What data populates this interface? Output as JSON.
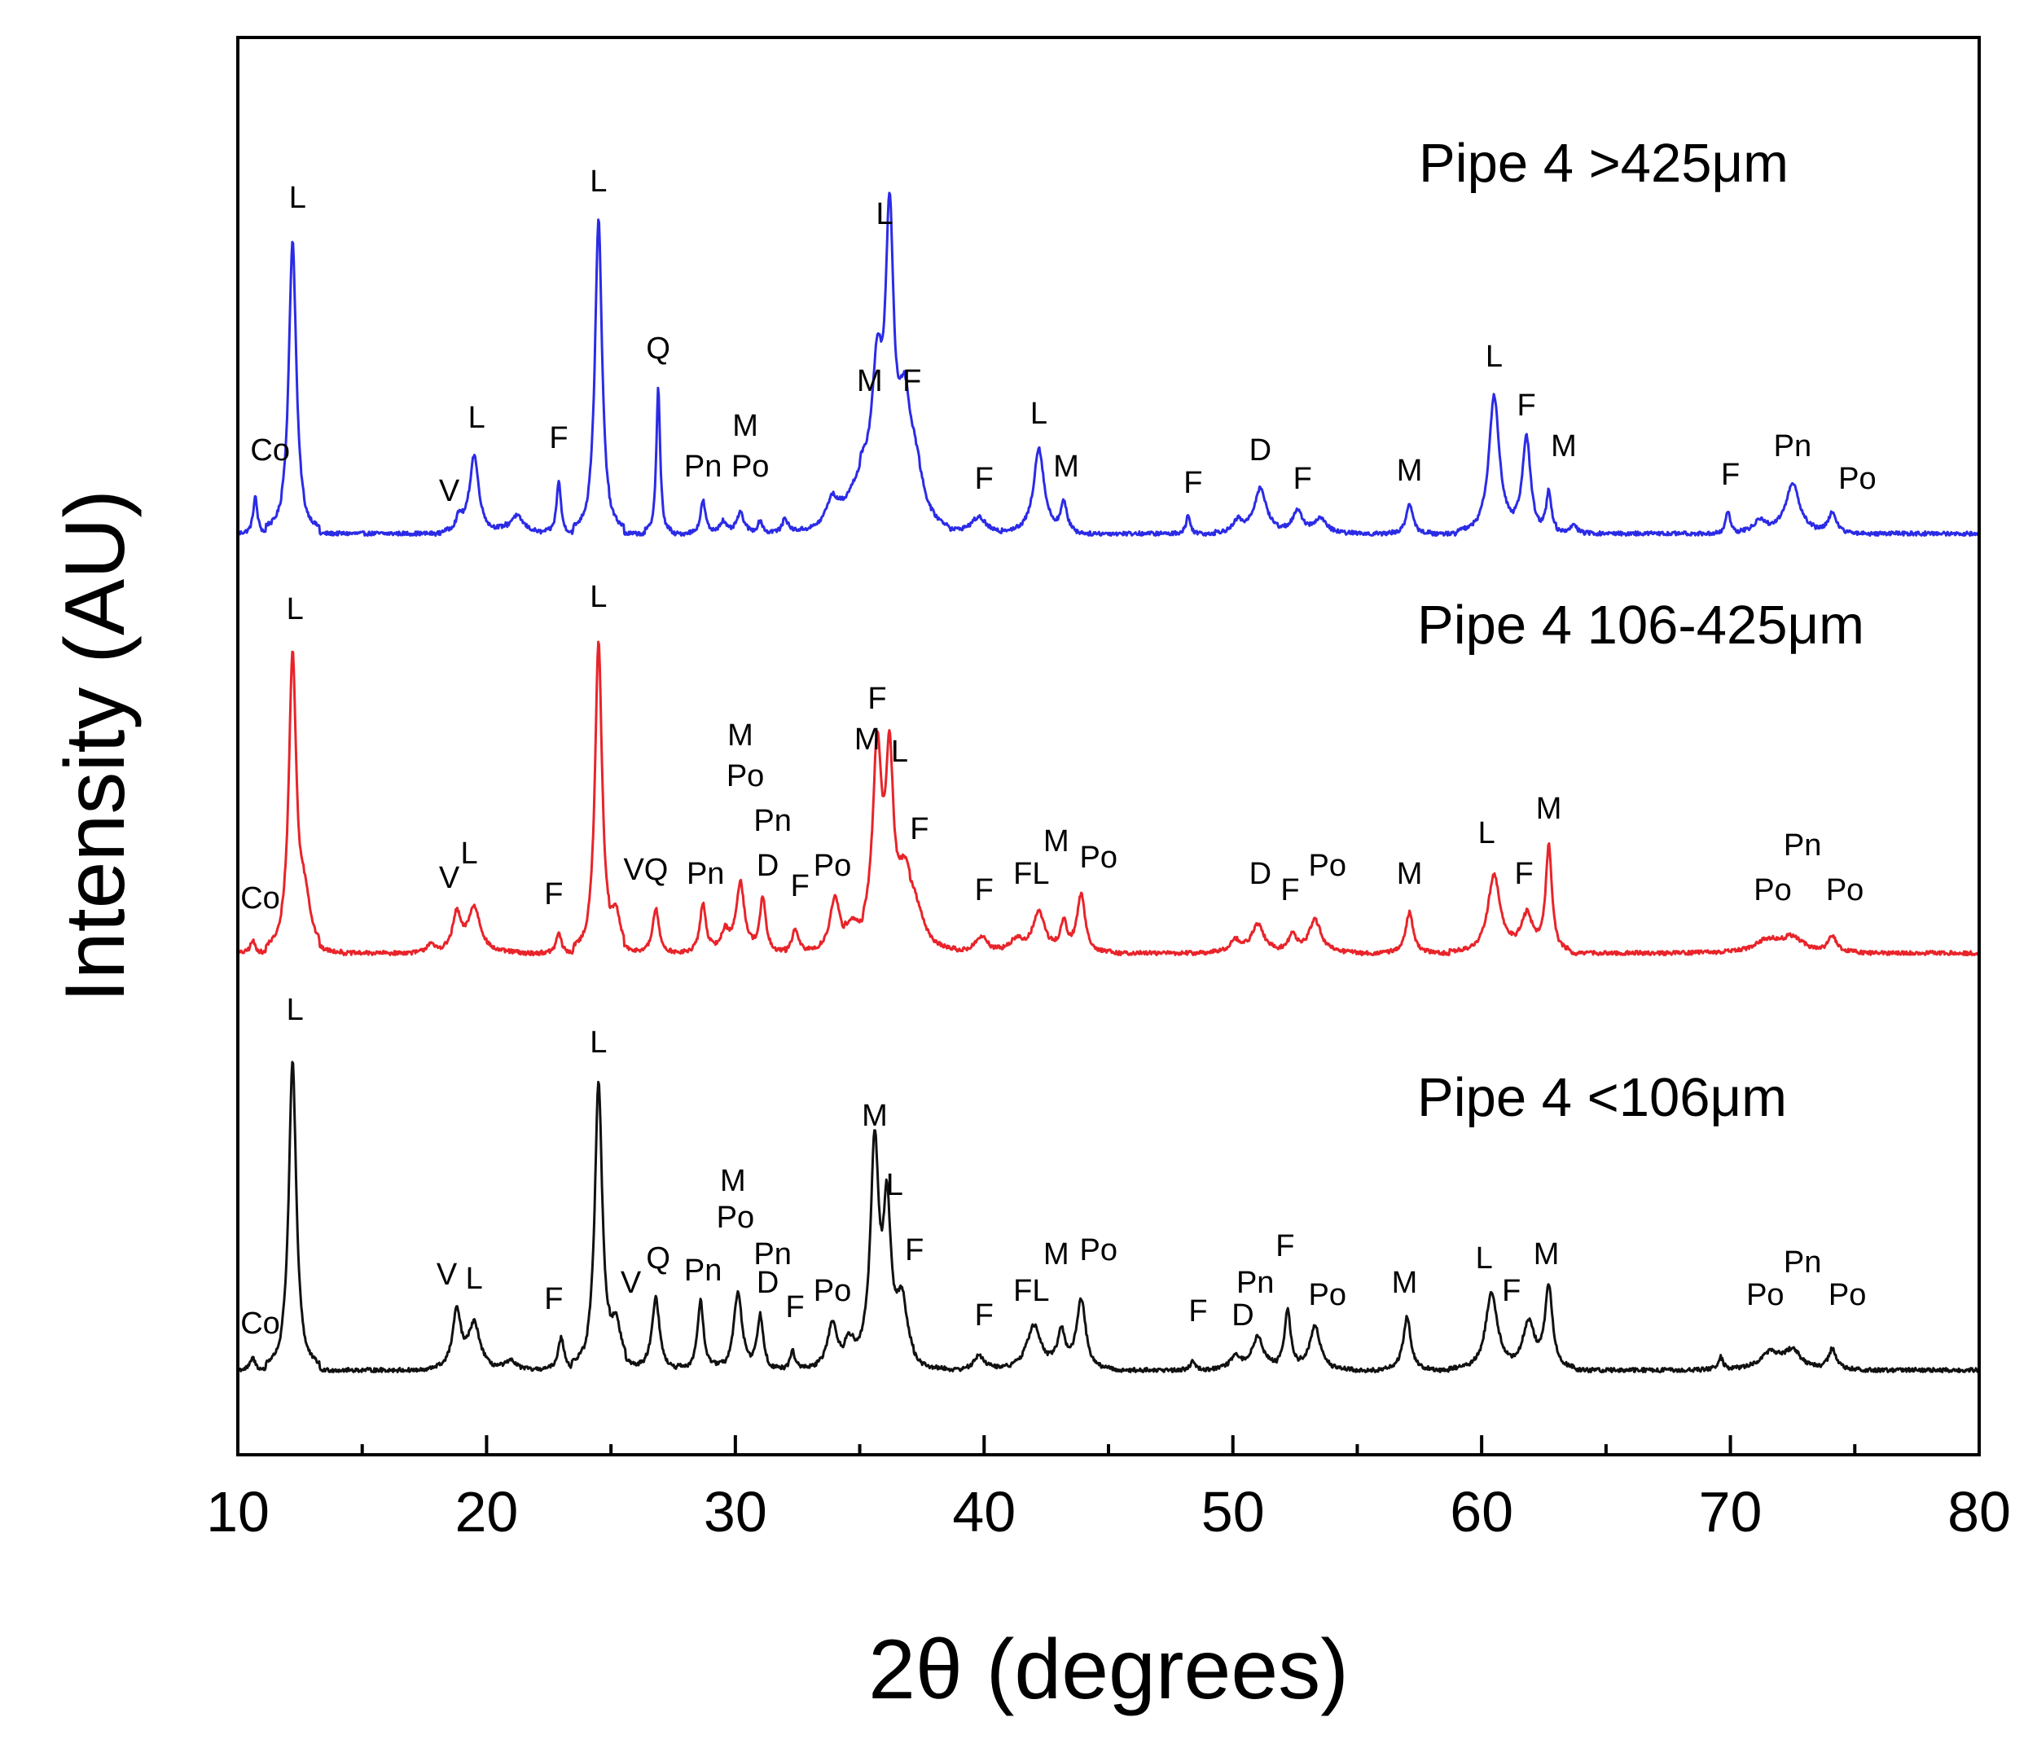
{
  "chart_data": {
    "type": "line",
    "title": "",
    "xlabel": "2θ (degrees)",
    "ylabel": "Intensity (AU)",
    "xlim": [
      10,
      80
    ],
    "xticks": [
      10,
      20,
      30,
      40,
      50,
      60,
      70,
      80
    ],
    "y_units": "arbitrary (stacked, offset)",
    "series": [
      {
        "name": "Pipe 4 >425μm",
        "label": "Pipe 4 >425μm",
        "color": "#2b2be6",
        "baseline": 0,
        "peaks": [
          [
            10.7,
            45,
            0.1
          ],
          [
            12.2,
            360,
            0.18
          ],
          [
            18.9,
            18,
            0.15
          ],
          [
            19.5,
            95,
            0.22
          ],
          [
            21.2,
            22,
            0.35
          ],
          [
            22.9,
            65,
            0.1
          ],
          [
            24.5,
            385,
            0.17
          ],
          [
            26.9,
            180,
            0.09
          ],
          [
            28.7,
            40,
            0.12
          ],
          [
            29.5,
            15,
            0.15
          ],
          [
            30.2,
            25,
            0.18
          ],
          [
            31.0,
            15,
            0.12
          ],
          [
            32.0,
            18,
            0.12
          ],
          [
            33.9,
            35,
            0.3
          ],
          [
            35.0,
            60,
            0.6
          ],
          [
            35.7,
            160,
            0.26
          ],
          [
            36.2,
            340,
            0.2
          ],
          [
            36.8,
            130,
            0.3
          ],
          [
            37.3,
            60,
            0.4
          ],
          [
            39.8,
            20,
            0.35
          ],
          [
            42.2,
            105,
            0.25
          ],
          [
            43.2,
            35,
            0.15
          ],
          [
            48.2,
            22,
            0.1
          ],
          [
            50.2,
            15,
            0.2
          ],
          [
            51.1,
            55,
            0.3
          ],
          [
            52.6,
            25,
            0.25
          ],
          [
            53.5,
            18,
            0.3
          ],
          [
            57.1,
            38,
            0.15
          ],
          [
            60.5,
            170,
            0.25
          ],
          [
            61.8,
            115,
            0.2
          ],
          [
            62.7,
            50,
            0.12
          ],
          [
            63.7,
            12,
            0.15
          ],
          [
            69.9,
            28,
            0.1
          ],
          [
            71.2,
            15,
            0.3
          ],
          [
            72.5,
            60,
            0.35
          ],
          [
            74.1,
            25,
            0.18
          ]
        ],
        "peak_labels": [
          {
            "text": "Co",
            "x": 11.3,
            "y": 90
          },
          {
            "text": "L",
            "x": 12.4,
            "y": 400
          },
          {
            "text": "V",
            "x": 18.5,
            "y": 40
          },
          {
            "text": "L",
            "x": 19.6,
            "y": 130
          },
          {
            "text": "F",
            "x": 22.9,
            "y": 105
          },
          {
            "text": "L",
            "x": 24.5,
            "y": 420
          },
          {
            "text": "Q",
            "x": 26.9,
            "y": 215
          },
          {
            "text": "Pn",
            "x": 28.7,
            "y": 70
          },
          {
            "text": "M",
            "x": 30.4,
            "y": 120
          },
          {
            "text": "Po",
            "x": 30.6,
            "y": 70
          },
          {
            "text": "M",
            "x": 35.4,
            "y": 175
          },
          {
            "text": "L",
            "x": 36.0,
            "y": 380
          },
          {
            "text": "F",
            "x": 37.1,
            "y": 175
          },
          {
            "text": "F",
            "x": 40.0,
            "y": 55
          },
          {
            "text": "L",
            "x": 42.2,
            "y": 135
          },
          {
            "text": "M",
            "x": 43.3,
            "y": 70
          },
          {
            "text": "F",
            "x": 48.4,
            "y": 50
          },
          {
            "text": "D",
            "x": 51.1,
            "y": 90
          },
          {
            "text": "F",
            "x": 52.8,
            "y": 55
          },
          {
            "text": "M",
            "x": 57.1,
            "y": 65
          },
          {
            "text": "L",
            "x": 60.5,
            "y": 205
          },
          {
            "text": "F",
            "x": 61.8,
            "y": 145
          },
          {
            "text": "M",
            "x": 63.3,
            "y": 95
          },
          {
            "text": "F",
            "x": 70.0,
            "y": 60
          },
          {
            "text": "Pn",
            "x": 72.5,
            "y": 95
          },
          {
            "text": "Po",
            "x": 75.1,
            "y": 55
          }
        ]
      },
      {
        "name": "Pipe 4 106-425μm",
        "label": "Pipe 4 106-425μm",
        "color": "#e8242a",
        "baseline": 0,
        "peaks": [
          [
            10.6,
            15,
            0.12
          ],
          [
            12.2,
            360,
            0.18
          ],
          [
            12.7,
            60,
            0.25
          ],
          [
            17.7,
            10,
            0.2
          ],
          [
            18.8,
            45,
            0.2
          ],
          [
            19.5,
            55,
            0.3
          ],
          [
            22.9,
            25,
            0.12
          ],
          [
            24.5,
            380,
            0.17
          ],
          [
            25.2,
            40,
            0.2
          ],
          [
            26.8,
            55,
            0.15
          ],
          [
            28.7,
            60,
            0.15
          ],
          [
            29.6,
            25,
            0.2
          ],
          [
            30.2,
            85,
            0.2
          ],
          [
            31.1,
            65,
            0.15
          ],
          [
            32.4,
            30,
            0.15
          ],
          [
            34.0,
            65,
            0.25
          ],
          [
            34.7,
            25,
            0.3
          ],
          [
            35.7,
            240,
            0.22
          ],
          [
            36.2,
            210,
            0.18
          ],
          [
            36.8,
            80,
            0.35
          ],
          [
            37.3,
            40,
            0.4
          ],
          [
            39.9,
            20,
            0.3
          ],
          [
            41.3,
            15,
            0.3
          ],
          [
            42.2,
            50,
            0.3
          ],
          [
            43.2,
            35,
            0.15
          ],
          [
            43.9,
            70,
            0.2
          ],
          [
            50.1,
            15,
            0.25
          ],
          [
            51.0,
            35,
            0.3
          ],
          [
            52.4,
            20,
            0.2
          ],
          [
            53.3,
            40,
            0.3
          ],
          [
            57.1,
            50,
            0.18
          ],
          [
            60.5,
            95,
            0.3
          ],
          [
            61.8,
            45,
            0.3
          ],
          [
            62.7,
            130,
            0.15
          ],
          [
            71.5,
            15,
            0.6
          ],
          [
            72.5,
            18,
            0.5
          ],
          [
            74.1,
            20,
            0.2
          ]
        ],
        "peak_labels": [
          {
            "text": "Co",
            "x": 10.9,
            "y": 55
          },
          {
            "text": "L",
            "x": 12.3,
            "y": 410
          },
          {
            "text": "V",
            "x": 18.5,
            "y": 80
          },
          {
            "text": "L",
            "x": 19.3,
            "y": 110
          },
          {
            "text": "F",
            "x": 22.7,
            "y": 60
          },
          {
            "text": "L",
            "x": 24.5,
            "y": 425
          },
          {
            "text": "VQ",
            "x": 26.4,
            "y": 90
          },
          {
            "text": "Pn",
            "x": 28.8,
            "y": 85
          },
          {
            "text": "M",
            "x": 30.2,
            "y": 255
          },
          {
            "text": "Po",
            "x": 30.4,
            "y": 205
          },
          {
            "text": "Pn",
            "x": 31.5,
            "y": 150
          },
          {
            "text": "D",
            "x": 31.3,
            "y": 95
          },
          {
            "text": "F",
            "x": 32.6,
            "y": 70
          },
          {
            "text": "Po",
            "x": 33.9,
            "y": 95
          },
          {
            "text": "F",
            "x": 35.7,
            "y": 300
          },
          {
            "text": "M",
            "x": 35.3,
            "y": 250
          },
          {
            "text": "L",
            "x": 36.6,
            "y": 235
          },
          {
            "text": "F",
            "x": 37.4,
            "y": 140
          },
          {
            "text": "F",
            "x": 40.0,
            "y": 65
          },
          {
            "text": "FL",
            "x": 41.9,
            "y": 85
          },
          {
            "text": "M",
            "x": 42.9,
            "y": 125
          },
          {
            "text": "Po",
            "x": 44.6,
            "y": 105
          },
          {
            "text": "D",
            "x": 51.1,
            "y": 85
          },
          {
            "text": "F",
            "x": 52.3,
            "y": 65
          },
          {
            "text": "Po",
            "x": 53.8,
            "y": 95
          },
          {
            "text": "M",
            "x": 57.1,
            "y": 85
          },
          {
            "text": "L",
            "x": 60.2,
            "y": 135
          },
          {
            "text": "F",
            "x": 61.7,
            "y": 85
          },
          {
            "text": "M",
            "x": 62.7,
            "y": 165
          },
          {
            "text": "Pn",
            "x": 72.9,
            "y": 120
          },
          {
            "text": "Po",
            "x": 71.7,
            "y": 65
          },
          {
            "text": "Po",
            "x": 74.6,
            "y": 65
          }
        ]
      },
      {
        "name": "Pipe 4 <106μm",
        "label": "Pipe 4 <106μm",
        "color": "#111111",
        "baseline": 0,
        "peaks": [
          [
            10.6,
            15,
            0.12
          ],
          [
            12.2,
            380,
            0.18
          ],
          [
            18.8,
            70,
            0.2
          ],
          [
            19.5,
            55,
            0.28
          ],
          [
            21.0,
            10,
            0.3
          ],
          [
            23.0,
            40,
            0.15
          ],
          [
            24.5,
            350,
            0.18
          ],
          [
            25.2,
            50,
            0.25
          ],
          [
            26.8,
            90,
            0.18
          ],
          [
            28.6,
            85,
            0.15
          ],
          [
            30.1,
            95,
            0.2
          ],
          [
            31.0,
            65,
            0.15
          ],
          [
            32.3,
            25,
            0.12
          ],
          [
            33.9,
            55,
            0.25
          ],
          [
            34.6,
            30,
            0.3
          ],
          [
            35.6,
            270,
            0.2
          ],
          [
            36.1,
            180,
            0.18
          ],
          [
            36.7,
            80,
            0.3
          ],
          [
            39.8,
            18,
            0.25
          ],
          [
            42.0,
            55,
            0.35
          ],
          [
            43.1,
            45,
            0.18
          ],
          [
            43.9,
            85,
            0.22
          ],
          [
            48.4,
            12,
            0.12
          ],
          [
            50.1,
            15,
            0.25
          ],
          [
            51.0,
            40,
            0.3
          ],
          [
            52.2,
            70,
            0.15
          ],
          [
            53.3,
            55,
            0.25
          ],
          [
            57.0,
            65,
            0.18
          ],
          [
            60.4,
            95,
            0.28
          ],
          [
            61.9,
            55,
            0.3
          ],
          [
            62.7,
            100,
            0.18
          ],
          [
            69.6,
            15,
            0.12
          ],
          [
            71.6,
            20,
            0.5
          ],
          [
            72.5,
            22,
            0.4
          ],
          [
            74.1,
            25,
            0.18
          ]
        ],
        "peak_labels": [
          {
            "text": "Co",
            "x": 10.9,
            "y": 45
          },
          {
            "text": "L",
            "x": 12.3,
            "y": 430
          },
          {
            "text": "V",
            "x": 18.4,
            "y": 105
          },
          {
            "text": "L",
            "x": 19.5,
            "y": 100
          },
          {
            "text": "F",
            "x": 22.7,
            "y": 75
          },
          {
            "text": "L",
            "x": 24.5,
            "y": 390
          },
          {
            "text": "V",
            "x": 25.8,
            "y": 95
          },
          {
            "text": "Q",
            "x": 26.9,
            "y": 125
          },
          {
            "text": "Pn",
            "x": 28.7,
            "y": 110
          },
          {
            "text": "M",
            "x": 29.9,
            "y": 220
          },
          {
            "text": "Po",
            "x": 30.0,
            "y": 175
          },
          {
            "text": "Pn",
            "x": 31.5,
            "y": 130
          },
          {
            "text": "D",
            "x": 31.3,
            "y": 95
          },
          {
            "text": "F",
            "x": 32.4,
            "y": 65
          },
          {
            "text": "Po",
            "x": 33.9,
            "y": 85
          },
          {
            "text": "M",
            "x": 35.6,
            "y": 300
          },
          {
            "text": "L",
            "x": 36.4,
            "y": 215
          },
          {
            "text": "F",
            "x": 37.2,
            "y": 135
          },
          {
            "text": "F",
            "x": 40.0,
            "y": 55
          },
          {
            "text": "FL",
            "x": 41.9,
            "y": 85
          },
          {
            "text": "M",
            "x": 42.9,
            "y": 130
          },
          {
            "text": "Po",
            "x": 44.6,
            "y": 135
          },
          {
            "text": "F",
            "x": 48.6,
            "y": 60
          },
          {
            "text": "D",
            "x": 50.4,
            "y": 55
          },
          {
            "text": "Pn",
            "x": 50.9,
            "y": 95
          },
          {
            "text": "F",
            "x": 52.1,
            "y": 140
          },
          {
            "text": "Po",
            "x": 53.8,
            "y": 80
          },
          {
            "text": "M",
            "x": 56.9,
            "y": 95
          },
          {
            "text": "L",
            "x": 60.1,
            "y": 125
          },
          {
            "text": "F",
            "x": 61.2,
            "y": 85
          },
          {
            "text": "M",
            "x": 62.6,
            "y": 130
          },
          {
            "text": "Pn",
            "x": 72.9,
            "y": 120
          },
          {
            "text": "Po",
            "x": 71.4,
            "y": 80
          },
          {
            "text": "Po",
            "x": 74.7,
            "y": 80
          }
        ]
      }
    ]
  }
}
